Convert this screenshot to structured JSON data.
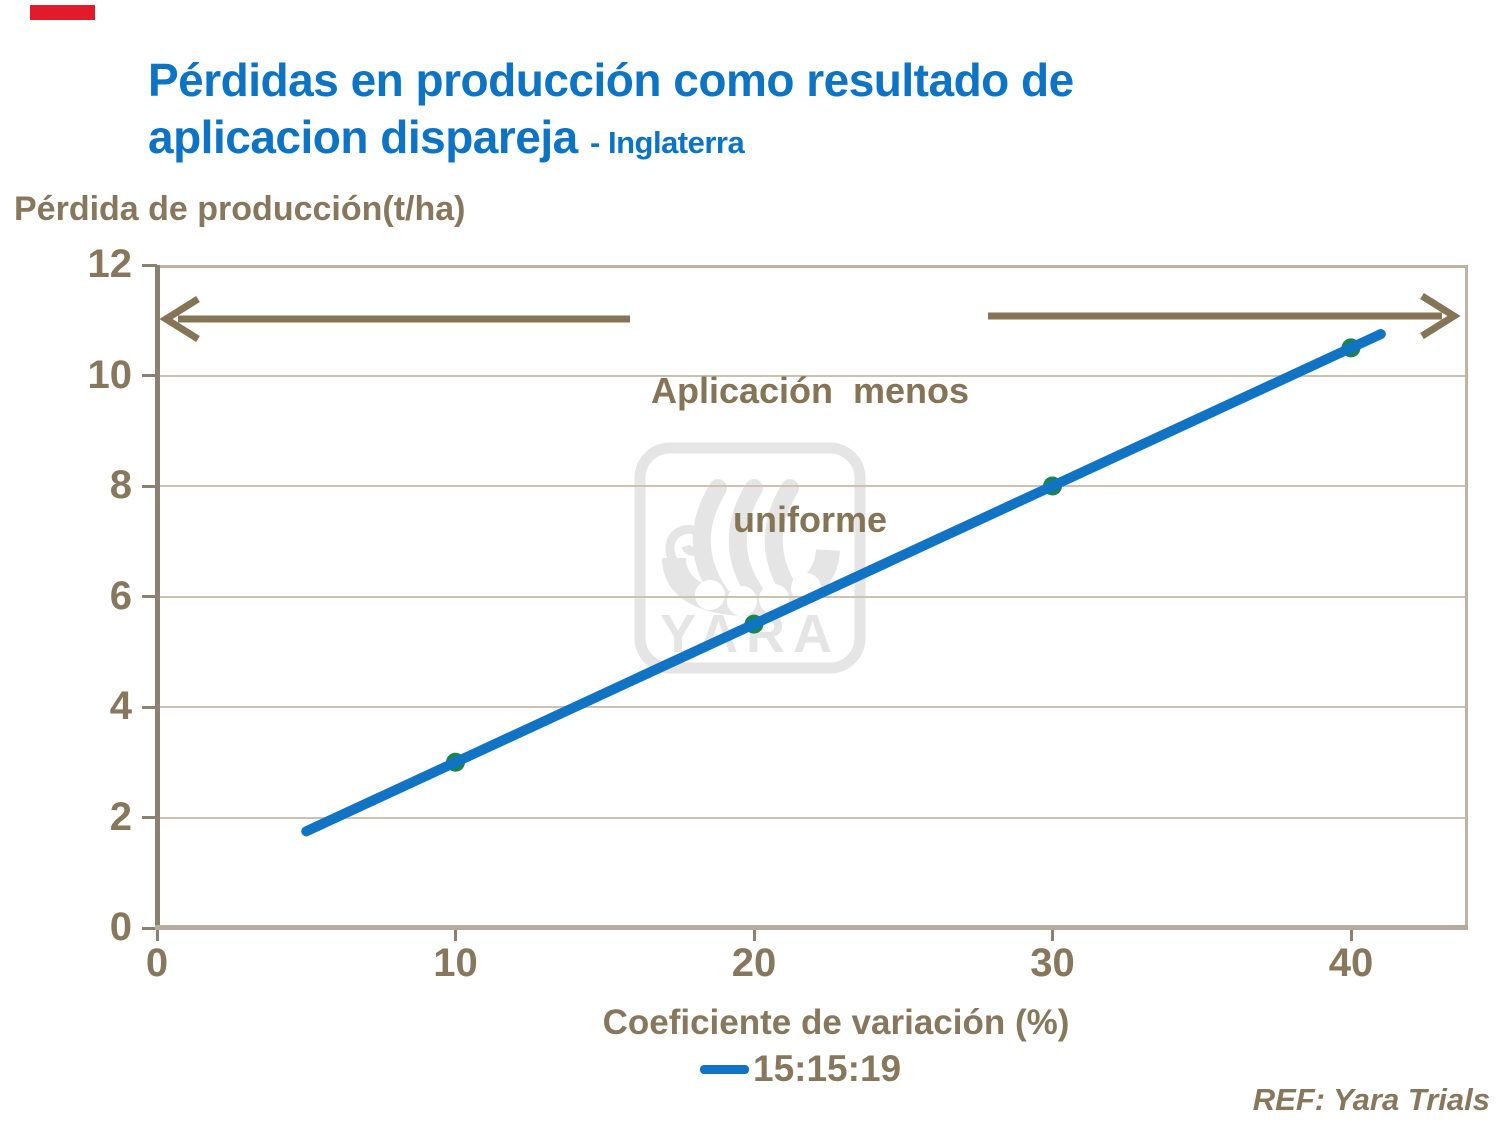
{
  "page": {
    "title_line1": "Pérdidas en producción como resultado de",
    "title_line2": "aplicacion dispareja ",
    "title_suffix": "- Inglaterra",
    "ref_note": "REF: Yara Trials",
    "red_bar_color": "#e11a2c",
    "title_color": "#0d73c5"
  },
  "chart_data": {
    "type": "line",
    "title": "Pérdidas en producción como resultado de aplicacion dispareja - Inglaterra",
    "ylabel": "Pérdida de producción(t/ha)",
    "xlabel": "Coeficiente de variación (%)",
    "ylim": [
      0,
      12
    ],
    "xlim": [
      0,
      43.8
    ],
    "y_ticks": [
      0,
      2,
      4,
      6,
      8,
      10,
      12
    ],
    "x_ticks": [
      0,
      10,
      20,
      30,
      40
    ],
    "grid": true,
    "legend_position": "bottom",
    "series": [
      {
        "name": "15:15:19",
        "color": "#1173c4",
        "marker_color": "#1b8454",
        "points": [
          {
            "x": 5,
            "y": 1.75,
            "marker": false
          },
          {
            "x": 10,
            "y": 3,
            "marker": true
          },
          {
            "x": 20,
            "y": 5.5,
            "marker": true
          },
          {
            "x": 30,
            "y": 8,
            "marker": true
          },
          {
            "x": 40,
            "y": 10.5,
            "marker": true
          },
          {
            "x": 41,
            "y": 10.75,
            "marker": false
          }
        ]
      }
    ],
    "annotation": {
      "line1": "Aplicación  menos",
      "line2": "uniforme",
      "color": "#857455"
    },
    "legend": {
      "label": "15:15:19"
    },
    "watermark": "YARA"
  }
}
